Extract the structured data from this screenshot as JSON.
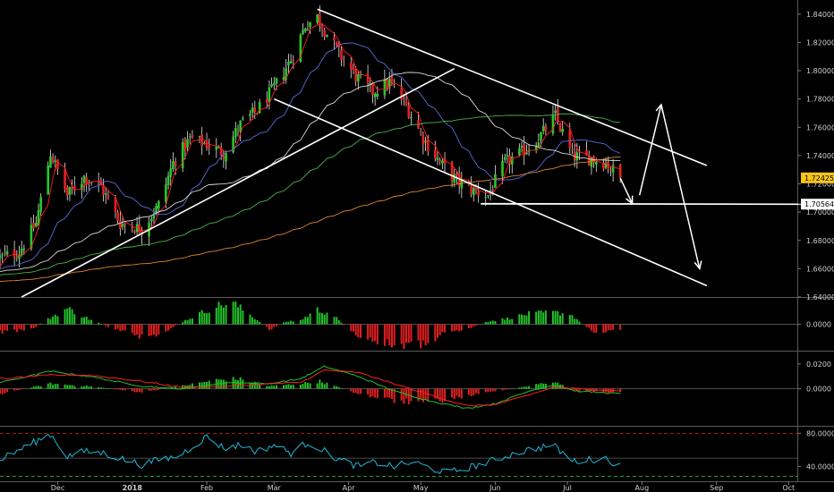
{
  "chart_data": [
    {
      "type": "candlestick",
      "title": "",
      "ylim": [
        1.64,
        1.85
      ],
      "y_ticks": [
        "1.84000",
        "1.82000",
        "1.80000",
        "1.78000",
        "1.76000",
        "1.74000",
        "1.72000",
        "1.70000",
        "1.68000",
        "1.66000",
        "1.64000"
      ],
      "y_tick_values": [
        1.84,
        1.82,
        1.8,
        1.78,
        1.76,
        1.74,
        1.72,
        1.7,
        1.68,
        1.66,
        1.64
      ],
      "x_ticks": [
        "Dec",
        "2018",
        "Feb",
        "Mar",
        "Apr",
        "May",
        "Jun",
        "Jul",
        "Aug",
        "Sep",
        "Oct"
      ],
      "x_tick_dates": [
        "2017-12-01",
        "2018-01-01",
        "2018-02-01",
        "2018-03-01",
        "2018-04-01",
        "2018-05-01",
        "2018-06-01",
        "2018-07-01",
        "2018-08-01",
        "2018-09-01",
        "2018-10-01"
      ],
      "x_range": [
        "2017-11-07",
        "2018-10-05"
      ],
      "price_labels": [
        {
          "label": "1.72425",
          "value": 1.72425,
          "bg": "#f5c518",
          "fg": "#000000"
        },
        {
          "label": "1.70564",
          "value": 1.70564,
          "bg": "#ffffff",
          "fg": "#000000"
        }
      ],
      "ohlc_keypoints": {
        "x": [
          "2017-11-07",
          "2017-11-15",
          "2017-11-22",
          "2017-11-28",
          "2017-12-05",
          "2017-12-12",
          "2017-12-19",
          "2017-12-27",
          "2018-01-05",
          "2018-01-12",
          "2018-01-18",
          "2018-01-25",
          "2018-02-01",
          "2018-02-08",
          "2018-02-15",
          "2018-02-22",
          "2018-03-01",
          "2018-03-08",
          "2018-03-14",
          "2018-03-19",
          "2018-03-23",
          "2018-03-28",
          "2018-04-04",
          "2018-04-11",
          "2018-04-18",
          "2018-04-25",
          "2018-05-02",
          "2018-05-09",
          "2018-05-16",
          "2018-05-23",
          "2018-05-29",
          "2018-06-05",
          "2018-06-12",
          "2018-06-19",
          "2018-06-26",
          "2018-07-03",
          "2018-07-10",
          "2018-07-17",
          "2018-07-23"
        ],
        "close": [
          1.668,
          1.672,
          1.692,
          1.742,
          1.712,
          1.725,
          1.718,
          1.692,
          1.688,
          1.705,
          1.735,
          1.752,
          1.748,
          1.742,
          1.762,
          1.772,
          1.788,
          1.808,
          1.832,
          1.838,
          1.826,
          1.812,
          1.796,
          1.785,
          1.792,
          1.775,
          1.752,
          1.735,
          1.722,
          1.715,
          1.712,
          1.735,
          1.742,
          1.752,
          1.768,
          1.74,
          1.738,
          1.735,
          1.724
        ]
      },
      "moving_averages": [
        {
          "color": "#ff2020",
          "period": 5
        },
        {
          "color": "#5b6cd6",
          "period": 20
        },
        {
          "color": "#d8d8d8",
          "period": 50
        },
        {
          "color": "#49b24a",
          "period": 100
        },
        {
          "color": "#e0852a",
          "period": 200
        }
      ],
      "trendlines": [
        {
          "from": [
            "2018-03-19",
            1.8435
          ],
          "to": [
            "2018-08-28",
            1.733
          ],
          "color": "#ffffff"
        },
        {
          "from": [
            "2018-03-01",
            1.78
          ],
          "to": [
            "2018-08-28",
            1.648
          ],
          "color": "#ffffff"
        },
        {
          "from": [
            "2017-11-16",
            1.64
          ],
          "to": [
            "2018-05-15",
            1.8015
          ],
          "color": "#ffffff"
        },
        {
          "from": [
            "2018-05-26",
            1.706
          ],
          "to": [
            "2018-10-05",
            1.7056
          ],
          "color": "#ffffff"
        }
      ],
      "arrows": [
        {
          "points": [
            [
              "2018-07-23",
              1.724
            ],
            [
              "2018-07-28",
              1.706
            ]
          ]
        },
        {
          "points": [
            [
              "2018-07-31",
              1.712
            ],
            [
              "2018-08-09",
              1.776
            ],
            [
              "2018-08-25",
              1.66
            ]
          ]
        }
      ]
    },
    {
      "type": "bar",
      "title": "",
      "ylim": [
        -0.02,
        0.02
      ],
      "y_ticks": [
        "0.0000"
      ],
      "y_tick_values": [
        0
      ],
      "colors": {
        "positive": "#22c02a",
        "negative": "#e02020"
      },
      "keypoints": {
        "x": [
          "2017-11-07",
          "2017-11-20",
          "2017-11-28",
          "2017-12-05",
          "2017-12-14",
          "2017-12-25",
          "2018-01-08",
          "2018-01-22",
          "2018-02-05",
          "2018-02-12",
          "2018-02-20",
          "2018-02-27",
          "2018-03-06",
          "2018-03-12",
          "2018-03-19",
          "2018-03-25",
          "2018-04-02",
          "2018-04-15",
          "2018-05-01",
          "2018-05-10",
          "2018-05-20",
          "2018-05-28",
          "2018-06-05",
          "2018-06-15",
          "2018-06-25",
          "2018-07-02",
          "2018-07-12",
          "2018-07-23"
        ],
        "values": [
          -0.006,
          -0.004,
          0.005,
          0.012,
          0.004,
          -0.004,
          -0.012,
          0.002,
          0.014,
          0.016,
          0.006,
          -0.004,
          0.002,
          0.003,
          0.011,
          0.008,
          -0.006,
          -0.015,
          -0.016,
          -0.008,
          -0.004,
          0.002,
          0.004,
          0.008,
          0.009,
          0.008,
          -0.006,
          -0.004
        ]
      }
    },
    {
      "type": "bar",
      "title": "",
      "ylim": [
        -0.03,
        0.03
      ],
      "y_ticks": [
        "0.0200",
        "0.0000"
      ],
      "y_tick_values": [
        0.02,
        0
      ],
      "colors": {
        "positive": "#22c02a",
        "negative": "#e02020"
      },
      "keypoints": {
        "x": [
          "2017-11-07",
          "2017-11-28",
          "2017-12-14",
          "2018-01-05",
          "2018-01-18",
          "2018-02-05",
          "2018-02-14",
          "2018-02-27",
          "2018-03-12",
          "2018-03-20",
          "2018-04-05",
          "2018-04-20",
          "2018-05-05",
          "2018-05-20",
          "2018-06-01",
          "2018-06-15",
          "2018-06-25",
          "2018-07-05",
          "2018-07-23"
        ],
        "values": [
          -0.004,
          0.004,
          0.002,
          -0.003,
          0.001,
          0.007,
          0.008,
          0.002,
          0.004,
          0.006,
          -0.004,
          -0.01,
          -0.011,
          -0.006,
          -0.002,
          0.002,
          0.006,
          -0.002,
          -0.003
        ]
      },
      "lines": [
        {
          "color": "#22c02a",
          "keypoints": {
            "x": [
              "2017-11-07",
              "2017-11-28",
              "2017-12-14",
              "2018-01-05",
              "2018-01-22",
              "2018-02-10",
              "2018-02-27",
              "2018-03-12",
              "2018-03-22",
              "2018-04-05",
              "2018-04-20",
              "2018-05-05",
              "2018-05-20",
              "2018-06-01",
              "2018-06-15",
              "2018-06-25",
              "2018-07-05",
              "2018-07-23"
            ],
            "values": [
              0.005,
              0.014,
              0.01,
              0.002,
              0.0,
              0.005,
              0.004,
              0.008,
              0.018,
              0.01,
              -0.002,
              -0.01,
              -0.016,
              -0.012,
              -0.002,
              0.003,
              -0.002,
              -0.004
            ]
          }
        },
        {
          "color": "#ff2020",
          "keypoints": {
            "x": [
              "2017-11-07",
              "2017-11-28",
              "2017-12-14",
              "2018-01-05",
              "2018-01-22",
              "2018-02-10",
              "2018-02-27",
              "2018-03-12",
              "2018-03-22",
              "2018-04-05",
              "2018-04-20",
              "2018-05-05",
              "2018-05-20",
              "2018-06-01",
              "2018-06-15",
              "2018-06-25",
              "2018-07-05",
              "2018-07-23"
            ],
            "values": [
              0.008,
              0.011,
              0.011,
              0.006,
              0.001,
              0.002,
              0.004,
              0.005,
              0.015,
              0.013,
              0.004,
              -0.005,
              -0.014,
              -0.013,
              -0.005,
              0.001,
              0.0,
              -0.002
            ]
          }
        }
      ]
    },
    {
      "type": "line",
      "title": "",
      "ylim": [
        22,
        88
      ],
      "y_ticks": [
        "80.0000",
        "40.0000"
      ],
      "y_tick_values": [
        80,
        40
      ],
      "levels": [
        {
          "value": 80,
          "color": "#e02020",
          "style": "dashed"
        },
        {
          "value": 50,
          "color": "#606060",
          "style": "solid"
        },
        {
          "value": 28,
          "color": "#22c02a",
          "style": "dashed"
        }
      ],
      "series": [
        {
          "color": "#1fb9d6",
          "keypoints": {
            "x": [
              "2017-11-07",
              "2017-11-15",
              "2017-11-28",
              "2017-12-05",
              "2017-12-12",
              "2017-12-20",
              "2018-01-05",
              "2018-01-12",
              "2018-01-20",
              "2018-02-01",
              "2018-02-08",
              "2018-02-15",
              "2018-02-22",
              "2018-03-01",
              "2018-03-08",
              "2018-03-15",
              "2018-03-20",
              "2018-03-28",
              "2018-04-05",
              "2018-04-12",
              "2018-04-20",
              "2018-04-28",
              "2018-05-05",
              "2018-05-12",
              "2018-05-20",
              "2018-05-28",
              "2018-06-05",
              "2018-06-15",
              "2018-06-25",
              "2018-07-03",
              "2018-07-10",
              "2018-07-17",
              "2018-07-23"
            ],
            "values": [
              48,
              60,
              79,
              52,
              58,
              56,
              42,
              48,
              52,
              76,
              62,
              66,
              58,
              66,
              56,
              69,
              62,
              48,
              40,
              45,
              40,
              45,
              38,
              32,
              38,
              44,
              52,
              60,
              66,
              46,
              48,
              50,
              40
            ]
          }
        }
      ]
    }
  ]
}
